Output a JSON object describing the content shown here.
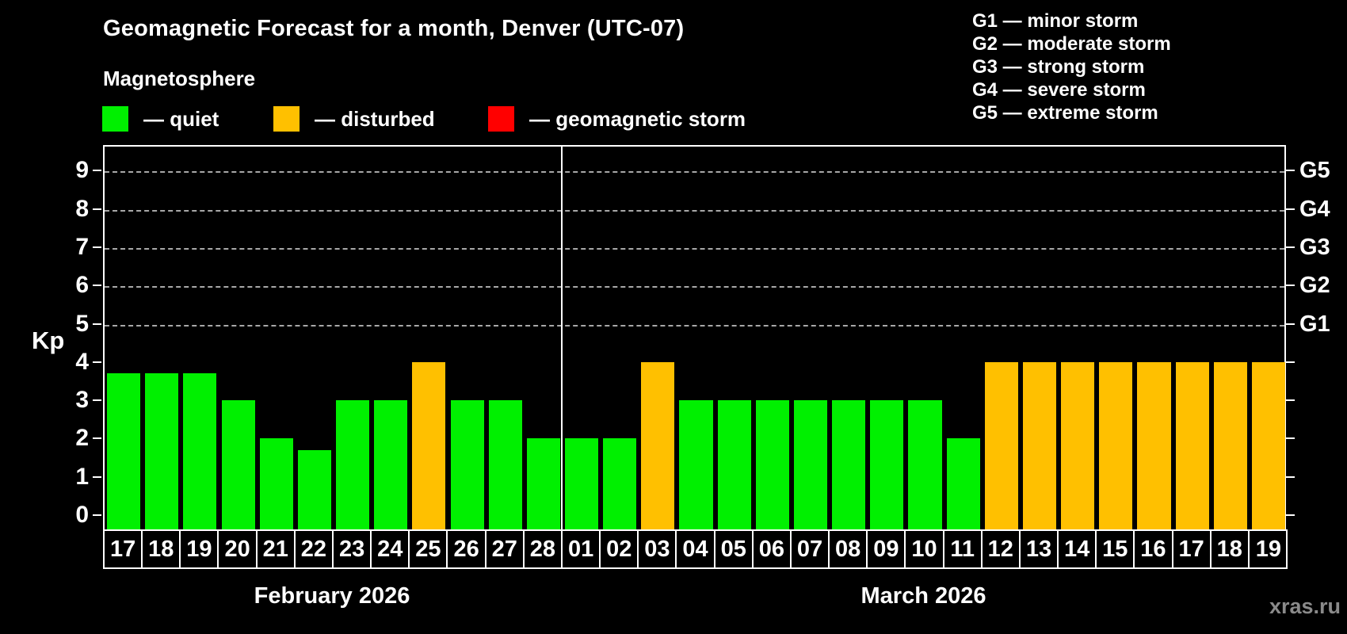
{
  "title": "Geomagnetic Forecast for a month, Denver (UTC-07)",
  "subtitle": "Magnetosphere",
  "kp_axis_label": "Kp",
  "watermark": "xras.ru",
  "colors": {
    "background": "#000000",
    "quiet": "#00f000",
    "disturbed": "#ffc000",
    "storm": "#ff0000",
    "axis": "#ffffff",
    "grid": "#a8a8a8",
    "watermark": "#8a8a8a"
  },
  "legend": [
    {
      "key": "quiet",
      "display": "— quiet"
    },
    {
      "key": "disturbed",
      "display": "— disturbed"
    },
    {
      "key": "storm",
      "display": "— geomagnetic storm"
    }
  ],
  "storm_scale": [
    {
      "code": "G1",
      "kp": 5,
      "display": "G1 — minor storm"
    },
    {
      "code": "G2",
      "kp": 6,
      "display": "G2 — moderate storm"
    },
    {
      "code": "G3",
      "kp": 7,
      "display": "G3 — strong storm"
    },
    {
      "code": "G4",
      "kp": 8,
      "display": "G4 — severe storm"
    },
    {
      "code": "G5",
      "kp": 9,
      "display": "G5 — extreme storm"
    }
  ],
  "chart_data": {
    "type": "bar",
    "title": "Geomagnetic Forecast for a month, Denver (UTC-07)",
    "ylabel": "Kp",
    "ylim": [
      0,
      9
    ],
    "y_ticks": [
      0,
      1,
      2,
      3,
      4,
      5,
      6,
      7,
      8,
      9
    ],
    "gridline_levels": [
      5,
      6,
      7,
      8,
      9
    ],
    "grid": "dashed-at-storm-levels-only",
    "legend_position": "top-left",
    "months": [
      {
        "label": "February 2026",
        "days": [
          "17",
          "18",
          "19",
          "20",
          "21",
          "22",
          "23",
          "24",
          "25",
          "26",
          "27",
          "28"
        ],
        "values": [
          3.7,
          3.7,
          3.7,
          3,
          2,
          1.7,
          3,
          3,
          4,
          3,
          3,
          2
        ],
        "status": [
          "quiet",
          "quiet",
          "quiet",
          "quiet",
          "quiet",
          "quiet",
          "quiet",
          "quiet",
          "disturbed",
          "quiet",
          "quiet",
          "quiet"
        ]
      },
      {
        "label": "March 2026",
        "days": [
          "01",
          "02",
          "03",
          "04",
          "05",
          "06",
          "07",
          "08",
          "09",
          "10",
          "11",
          "12",
          "13",
          "14",
          "15",
          "16",
          "17",
          "18",
          "19"
        ],
        "values": [
          2,
          2,
          4,
          3,
          3,
          3,
          3,
          3,
          3,
          3,
          2,
          4,
          4,
          4,
          4,
          4,
          4,
          4,
          4
        ],
        "status": [
          "quiet",
          "quiet",
          "disturbed",
          "quiet",
          "quiet",
          "quiet",
          "quiet",
          "quiet",
          "quiet",
          "quiet",
          "quiet",
          "disturbed",
          "disturbed",
          "disturbed",
          "disturbed",
          "disturbed",
          "disturbed",
          "disturbed",
          "disturbed"
        ]
      }
    ]
  }
}
